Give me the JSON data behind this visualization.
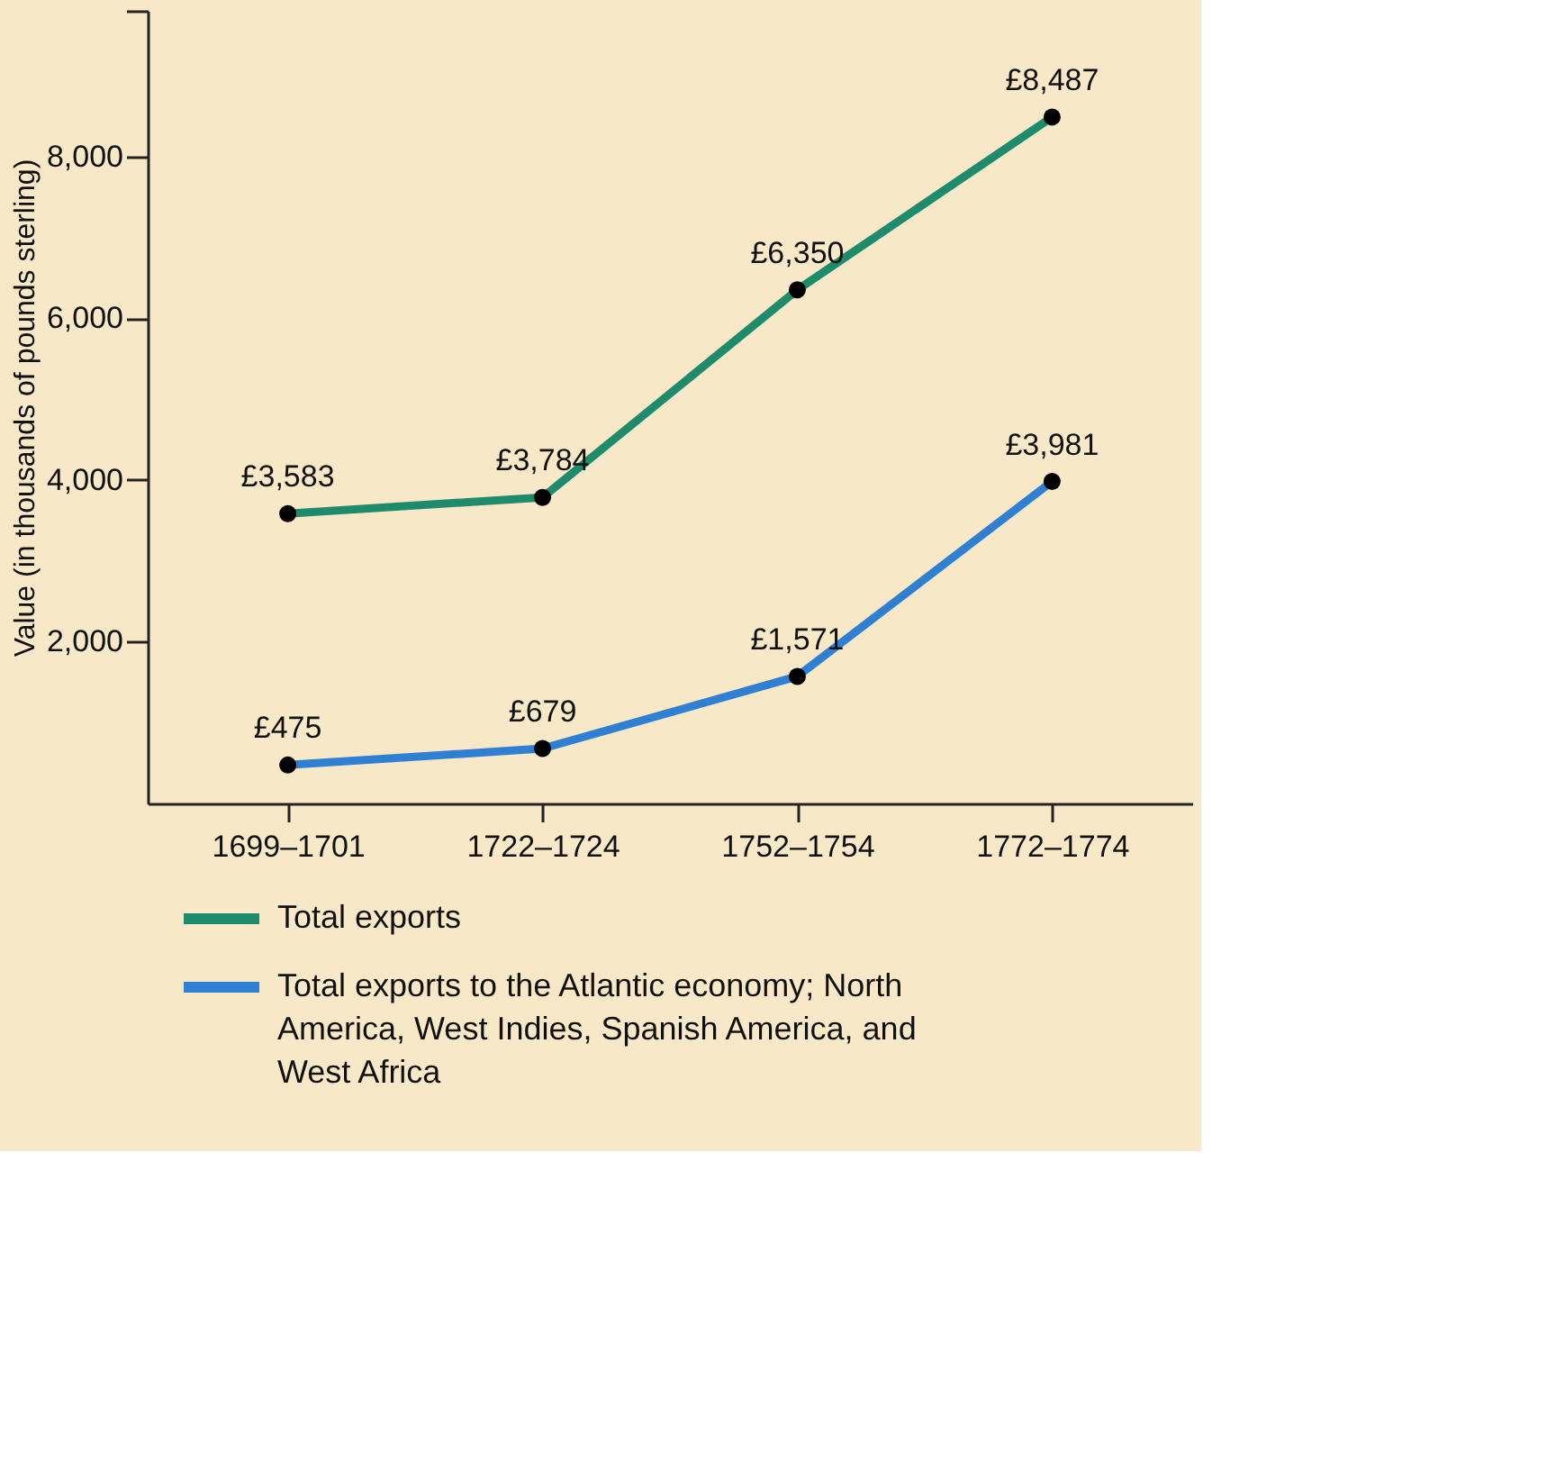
{
  "chart_data": {
    "type": "line",
    "ylabel": "Value (in thousands of pounds sterling)",
    "categories": [
      "1699–1701",
      "1722–1724",
      "1752–1754",
      "1772–1774"
    ],
    "series": [
      {
        "name": "Total exports",
        "color": "#1e8c6c",
        "values": [
          3583,
          3784,
          6350,
          8487
        ],
        "value_labels": [
          "£3,583",
          "£3,784",
          "£6,350",
          "£8,487"
        ]
      },
      {
        "name": "Total exports to the Atlantic economy; North America, West Indies, Spanish America, and West Africa",
        "color": "#2f80d2",
        "values": [
          475,
          679,
          1571,
          3981
        ],
        "value_labels": [
          "£475",
          "£679",
          "£1,571",
          "£3,981"
        ]
      }
    ],
    "ylim": [
      0,
      9800
    ],
    "yticks": [
      {
        "value": 2000,
        "label": "2,000"
      },
      {
        "value": 4000,
        "label": "4,000"
      },
      {
        "value": 6000,
        "label": "6,000"
      },
      {
        "value": 8000,
        "label": "8,000"
      },
      {
        "value": 9800,
        "label": null
      }
    ],
    "grid": false,
    "marker": "circle",
    "line_style": "solid",
    "legend": "bottom"
  }
}
